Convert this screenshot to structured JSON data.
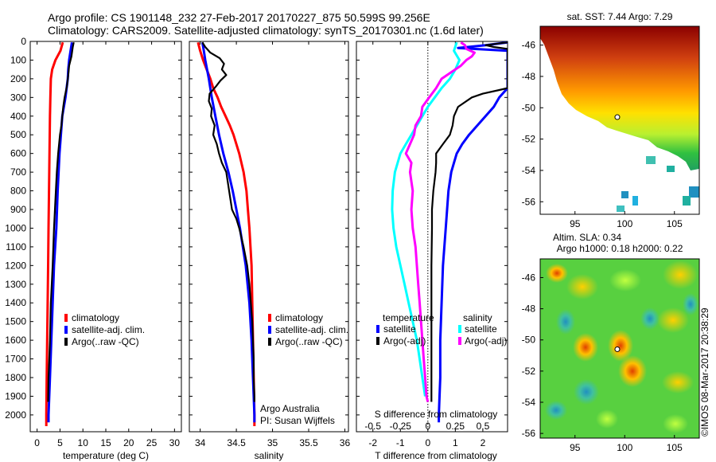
{
  "header": {
    "line1": "Argo profile: CS 1901148_232 27-Feb-2017 20170227_875 50.599S 99.256E",
    "line2": "Climatology: CARS2009. Satellite-adjusted climatology: synTS_20170301.nc (1.6d later)"
  },
  "colors": {
    "red": "#ff0000",
    "blue": "#0000ff",
    "black": "#000000",
    "cyan": "#00ffff",
    "magenta": "#ff00ff"
  },
  "depth_ticks": [
    "0",
    "100",
    "200",
    "300",
    "400",
    "500",
    "600",
    "700",
    "800",
    "900",
    "1000",
    "1100",
    "1200",
    "1300",
    "1400",
    "1500",
    "1600",
    "1700",
    "1800",
    "1900",
    "2000"
  ],
  "chart_data": [
    {
      "type": "line",
      "xlabel": "temperature (deg C)",
      "xlim": [
        -1.5,
        31.5
      ],
      "xticks": [
        "0",
        "5",
        "10",
        "15",
        "20",
        "25",
        "30"
      ],
      "xtick_values": [
        0,
        5,
        10,
        15,
        20,
        25,
        30
      ],
      "ylim": [
        2090,
        0
      ],
      "legend": [
        "climatology",
        "satellite-adj. clim.",
        "Argo(..raw -QC)"
      ],
      "series": [
        {
          "name": "climatology",
          "color": "red",
          "y": [
            5,
            50,
            100,
            150,
            200,
            300,
            400,
            600,
            800,
            1000,
            1200,
            1400,
            1600,
            1800,
            2000,
            2060
          ],
          "x": [
            5.6,
            5.1,
            4.0,
            3.3,
            3.0,
            2.9,
            2.8,
            2.7,
            2.6,
            2.5,
            2.4,
            2.3,
            2.2,
            2.1,
            2.0,
            2.0
          ]
        },
        {
          "name": "satellite-adj. clim.",
          "color": "blue",
          "y": [
            5,
            50,
            100,
            150,
            200,
            300,
            400,
            600,
            800,
            1000,
            1200,
            1400,
            1600,
            1800,
            2000,
            2040
          ],
          "x": [
            7.6,
            7.3,
            7.0,
            6.8,
            6.7,
            6.2,
            5.5,
            4.9,
            4.5,
            4.2,
            3.7,
            3.4,
            3.1,
            2.8,
            2.5,
            2.5
          ]
        },
        {
          "name": "Argo(..raw -QC)",
          "color": "black",
          "y": [
            5,
            30,
            80,
            130,
            180,
            240,
            300,
            350,
            400,
            450,
            500,
            600,
            700,
            800,
            1000,
            1200,
            1400,
            1600,
            1800,
            1930
          ],
          "x": [
            8.0,
            7.8,
            7.5,
            7.0,
            6.8,
            6.5,
            6.0,
            5.7,
            5.5,
            5.3,
            5.0,
            4.6,
            4.3,
            4.1,
            3.7,
            3.4,
            3.0,
            2.8,
            2.5,
            2.4
          ]
        }
      ]
    },
    {
      "type": "line",
      "xlabel": "salinity",
      "xlim": [
        33.85,
        36.05
      ],
      "xticks": [
        "34",
        "34.5",
        "35",
        "35.5",
        "36"
      ],
      "xtick_values": [
        34,
        34.5,
        35,
        35.5,
        36
      ],
      "ylim": [
        2090,
        0
      ],
      "legend": [
        "climatology",
        "satellite-adj. clim.",
        "Argo(..raw -QC)"
      ],
      "annotation": [
        "Argo Australia",
        "PI: Susan Wijffels"
      ],
      "series": [
        {
          "name": "climatology",
          "color": "red",
          "y": [
            5,
            50,
            100,
            150,
            200,
            250,
            300,
            350,
            400,
            450,
            500,
            600,
            700,
            800,
            900,
            1000,
            1200,
            1400,
            1600,
            1800,
            2000,
            2060
          ],
          "x": [
            33.97,
            34.0,
            34.04,
            34.09,
            34.14,
            34.18,
            34.24,
            34.29,
            34.35,
            34.41,
            34.46,
            34.54,
            34.6,
            34.64,
            34.66,
            34.68,
            34.71,
            34.72,
            34.73,
            34.74,
            34.75,
            34.75
          ]
        },
        {
          "name": "satellite-adj. clim.",
          "color": "blue",
          "y": [
            5,
            50,
            100,
            200,
            300,
            400,
            500,
            600,
            700,
            800,
            900,
            1000,
            1200,
            1400,
            1600,
            1800,
            2000,
            2040
          ],
          "x": [
            34.03,
            34.05,
            34.07,
            34.12,
            34.16,
            34.21,
            34.26,
            34.32,
            34.39,
            34.45,
            34.5,
            34.55,
            34.63,
            34.68,
            34.71,
            34.73,
            34.75,
            34.75
          ]
        },
        {
          "name": "Argo(..raw -QC)",
          "color": "black",
          "y": [
            5,
            30,
            60,
            90,
            120,
            150,
            180,
            210,
            240,
            280,
            320,
            360,
            400,
            450,
            500,
            550,
            600,
            650,
            700,
            750,
            800,
            850,
            900,
            950,
            1000,
            1100,
            1200,
            1300,
            1400,
            1500,
            1600,
            1700,
            1800,
            1900,
            1930
          ],
          "x": [
            34.03,
            34.07,
            34.14,
            34.27,
            34.33,
            34.3,
            34.36,
            34.28,
            34.22,
            34.13,
            34.12,
            34.16,
            34.15,
            34.2,
            34.18,
            34.23,
            34.26,
            34.3,
            34.36,
            34.38,
            34.4,
            34.42,
            34.44,
            34.5,
            34.54,
            34.6,
            34.65,
            34.68,
            34.7,
            34.72,
            34.73,
            34.74,
            34.74,
            34.75,
            34.75
          ]
        }
      ]
    },
    {
      "type": "line",
      "xlabel": "T difference from climatology",
      "x2label": "S difference from climatology",
      "xlim": [
        -2.6,
        2.9
      ],
      "xticks": [
        "-2",
        "-1",
        "0",
        "1",
        "2"
      ],
      "xtick_values": [
        -2,
        -1,
        0,
        1,
        2
      ],
      "x2ticks": [
        "-0.5",
        "-0.25",
        "0",
        "0.25",
        "0.5"
      ],
      "x2tick_values": [
        -2,
        -1,
        0,
        1,
        2
      ],
      "ylim": [
        2090,
        0
      ],
      "legend_groups": [
        {
          "title": "temperature",
          "items": [
            "satellite",
            "Argo(-adj)"
          ]
        },
        {
          "title": "salinity",
          "items": [
            "satellite",
            "Argo(-adj)"
          ]
        }
      ],
      "series": [
        {
          "name": "temperature satellite",
          "color": "blue",
          "y": [
            5,
            20,
            35,
            50,
            100,
            150,
            200,
            250,
            300,
            350,
            400,
            450,
            500,
            550,
            600,
            650,
            700,
            800,
            900,
            1000,
            1200,
            1400,
            1600,
            1800,
            2000,
            2040
          ],
          "x": [
            2.9,
            2.1,
            1.1,
            2.9,
            2.9,
            2.9,
            2.9,
            2.9,
            2.6,
            2.4,
            2.1,
            1.8,
            1.5,
            1.25,
            1.05,
            0.95,
            0.85,
            0.75,
            0.7,
            0.65,
            0.55,
            0.5,
            0.45,
            0.45,
            0.4,
            0.4
          ]
        },
        {
          "name": "temperature Argo(-adj)",
          "color": "black",
          "y": [
            5,
            20,
            30,
            40,
            50,
            60,
            70,
            80,
            100,
            150,
            200,
            250,
            260,
            280,
            300,
            350,
            400,
            450,
            500,
            550,
            600,
            650,
            700,
            800,
            900,
            1000,
            1200,
            1400,
            1600,
            1800,
            1930
          ],
          "x": [
            2.9,
            2.1,
            2.4,
            2.9,
            2.9,
            2.9,
            2.9,
            2.9,
            2.9,
            2.9,
            2.9,
            2.9,
            2.6,
            2.0,
            1.6,
            1.1,
            0.95,
            0.9,
            0.8,
            0.55,
            0.3,
            0.3,
            0.28,
            0.2,
            0.15,
            0.15,
            0.13,
            0.13,
            0.13,
            0.13,
            0.13
          ]
        },
        {
          "name": "salinity satellite",
          "color": "cyan",
          "y": [
            5,
            50,
            100,
            150,
            200,
            250,
            300,
            350,
            400,
            450,
            500,
            550,
            600,
            700,
            800,
            900,
            1000,
            1100,
            1200,
            1300,
            1400,
            1500,
            1600,
            1700,
            1800,
            1900
          ],
          "x": [
            1.05,
            0.95,
            1.15,
            1.0,
            0.8,
            0.5,
            0.25,
            0.0,
            -0.2,
            -0.4,
            -0.6,
            -0.8,
            -1.0,
            -1.2,
            -1.28,
            -1.3,
            -1.25,
            -1.15,
            -1.0,
            -0.85,
            -0.7,
            -0.55,
            -0.4,
            -0.3,
            -0.2,
            -0.1
          ]
        },
        {
          "name": "salinity Argo(-adj)",
          "color": "magenta",
          "y": [
            5,
            20,
            40,
            60,
            80,
            100,
            130,
            160,
            200,
            250,
            300,
            350,
            400,
            450,
            500,
            550,
            600,
            650,
            700,
            800,
            900,
            1000,
            1100,
            1200,
            1300,
            1400,
            1500,
            1600,
            1700,
            1800,
            1900,
            1930
          ],
          "x": [
            1.2,
            1.35,
            1.4,
            1.7,
            1.6,
            1.4,
            1.2,
            0.9,
            0.5,
            0.3,
            0.05,
            -0.2,
            -0.25,
            -0.45,
            -0.5,
            -0.65,
            -0.8,
            -0.6,
            -0.65,
            -0.55,
            -0.6,
            -0.55,
            -0.45,
            -0.4,
            -0.35,
            -0.3,
            -0.25,
            -0.2,
            -0.15,
            -0.1,
            -0.05,
            0.0
          ]
        }
      ]
    },
    {
      "type": "heatmap",
      "title": "sat. SST: 7.44  Argo: 7.29",
      "xlim": [
        91.5,
        107.5
      ],
      "ylim": [
        -56.8,
        -44.8
      ],
      "xticks": [
        "95",
        "100",
        "105"
      ],
      "xtick_values": [
        95,
        100,
        105
      ],
      "yticks": [
        "-46",
        "-48",
        "-50",
        "-52",
        "-54",
        "-56"
      ],
      "ytick_values": [
        -46,
        -48,
        -50,
        -52,
        -54,
        -56
      ],
      "marker": {
        "lon": 99.256,
        "lat": -50.599
      }
    },
    {
      "type": "heatmap",
      "title": "Altim. SLA: 0.34",
      "subtitle": "Argo h1000: 0.18 h2000: 0.22",
      "xlim": [
        91.5,
        107.5
      ],
      "ylim": [
        -56.3,
        -44.8
      ],
      "xticks": [
        "95",
        "100",
        "105"
      ],
      "xtick_values": [
        95,
        100,
        105
      ],
      "yticks": [
        "-46",
        "-48",
        "-50",
        "-52",
        "-54",
        "-56"
      ],
      "ytick_values": [
        -46,
        -48,
        -50,
        -52,
        -54,
        -56
      ],
      "marker": {
        "lon": 99.256,
        "lat": -50.599
      }
    }
  ],
  "credit": "©IMOS 08-Mar-2017 20:38:29"
}
